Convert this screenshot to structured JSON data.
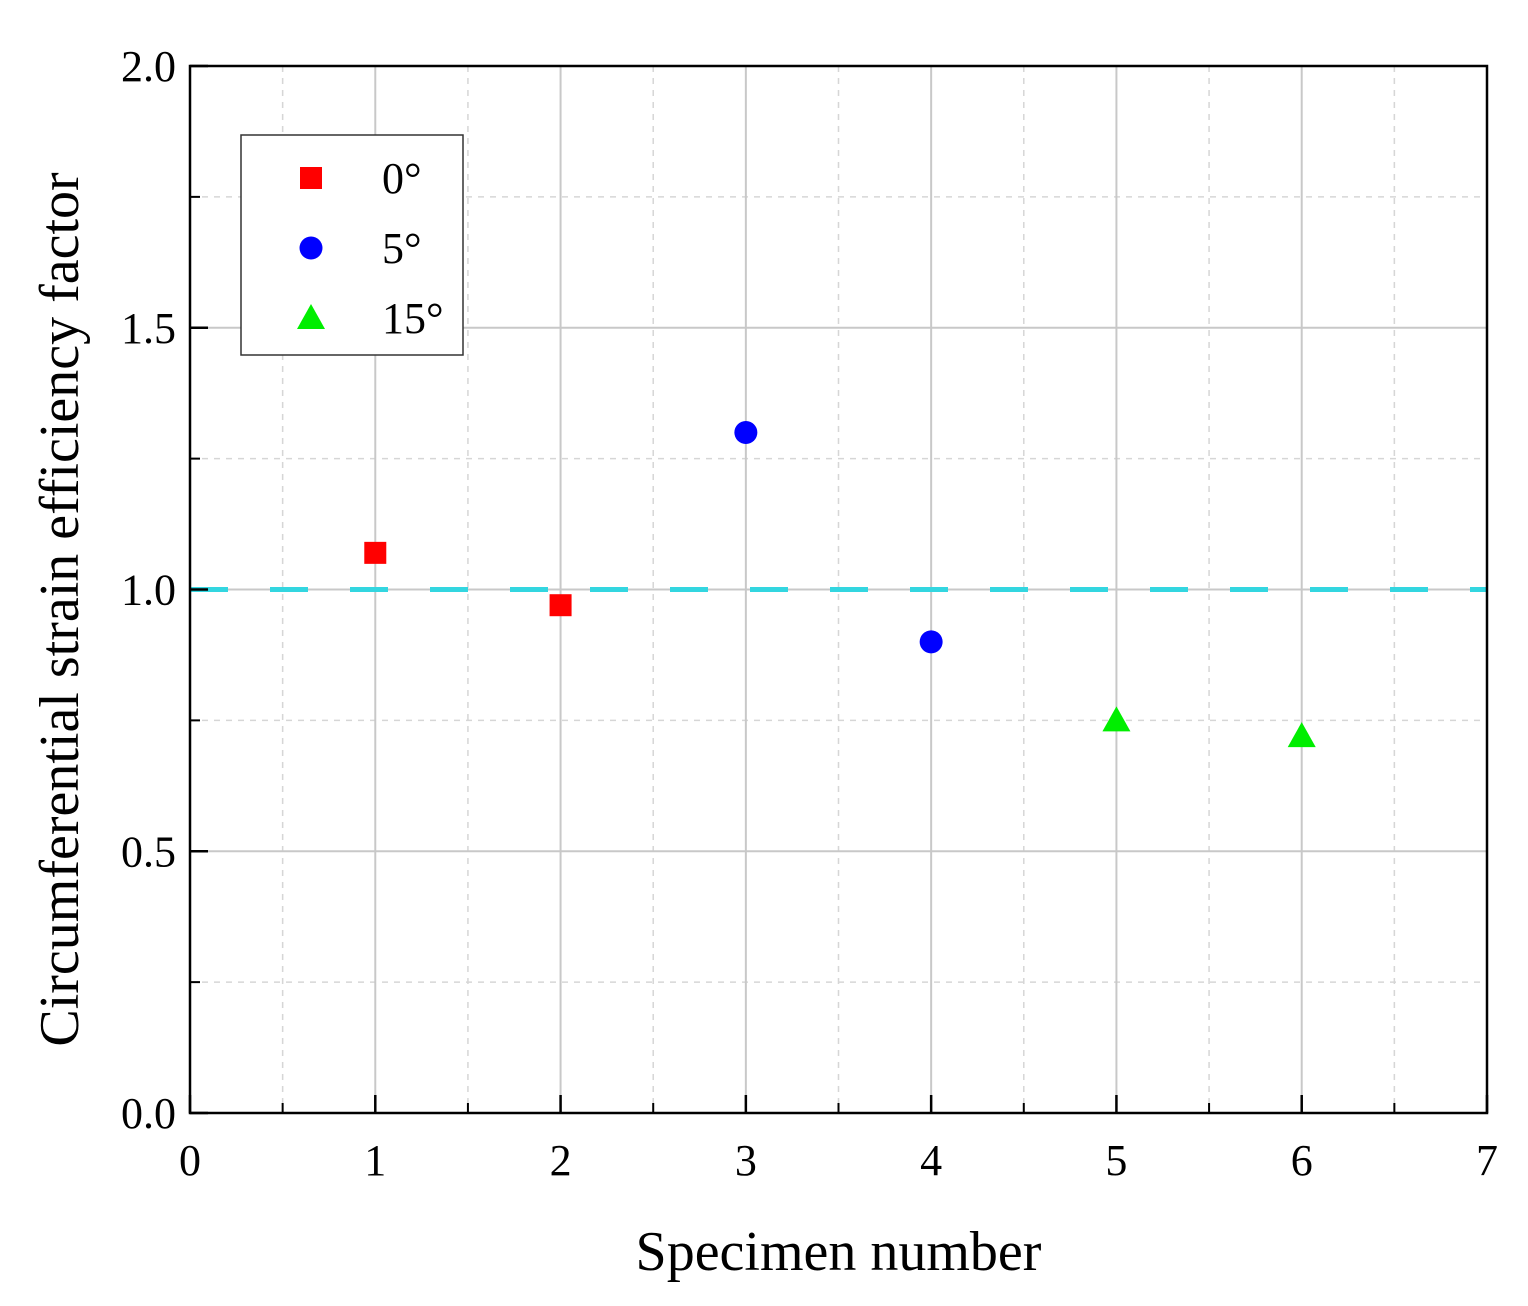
{
  "chart_data": {
    "type": "scatter",
    "title": "",
    "xlabel": "Specimen number",
    "ylabel": "Circumferential strain efficiency factor",
    "xlim": [
      0,
      7
    ],
    "ylim": [
      0.0,
      2.0
    ],
    "x_ticks": [
      "0",
      "1",
      "2",
      "3",
      "4",
      "5",
      "6",
      "7"
    ],
    "y_ticks": [
      "0.0",
      "0.5",
      "1.0",
      "1.5",
      "2.0"
    ],
    "grid": true,
    "legend_position": "top-left",
    "reference_line": {
      "y": 1.0,
      "style": "dashed",
      "color": "#33d6e0"
    },
    "series": [
      {
        "name": "0°",
        "marker": "square",
        "color": "#ff0000",
        "points": [
          {
            "x": 1,
            "y": 1.07
          },
          {
            "x": 2,
            "y": 0.97
          }
        ]
      },
      {
        "name": "5°",
        "marker": "circle",
        "color": "#0000ff",
        "points": [
          {
            "x": 3,
            "y": 1.3
          },
          {
            "x": 4,
            "y": 0.9
          }
        ]
      },
      {
        "name": "15°",
        "marker": "triangle",
        "color": "#00ee00",
        "points": [
          {
            "x": 5,
            "y": 0.75
          },
          {
            "x": 6,
            "y": 0.72
          }
        ]
      }
    ]
  }
}
